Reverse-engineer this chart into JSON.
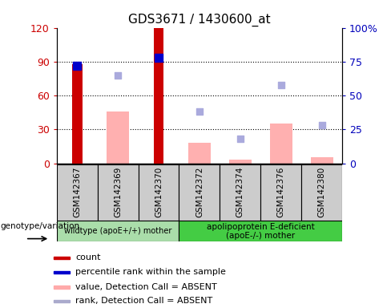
{
  "title": "GDS3671 / 1430600_at",
  "samples": [
    "GSM142367",
    "GSM142369",
    "GSM142370",
    "GSM142372",
    "GSM142374",
    "GSM142376",
    "GSM142380"
  ],
  "x_positions": [
    0,
    1,
    2,
    3,
    4,
    5,
    6
  ],
  "red_bars": [
    88,
    0,
    120,
    0,
    0,
    0,
    0
  ],
  "pink_bars": [
    0,
    46,
    0,
    18,
    3,
    35,
    5
  ],
  "blue_squares": [
    72,
    0,
    78,
    0,
    0,
    0,
    0
  ],
  "lavender_squares": [
    0,
    65,
    0,
    38,
    18,
    58,
    28
  ],
  "ylim_left": [
    0,
    120
  ],
  "ylim_right": [
    0,
    100
  ],
  "ytick_labels_left": [
    "0",
    "30",
    "60",
    "90",
    "120"
  ],
  "ytick_labels_right": [
    "0",
    "25",
    "50",
    "75",
    "100%"
  ],
  "group1_label": "wildtype (apoE+/+) mother",
  "group2_label": "apolipoprotein E-deficient\n(apoE-/-) mother",
  "legend_items": [
    "count",
    "percentile rank within the sample",
    "value, Detection Call = ABSENT",
    "rank, Detection Call = ABSENT"
  ],
  "legend_colors": [
    "#cc0000",
    "#0000cc",
    "#ffaaaa",
    "#aaaacc"
  ],
  "red_bar_color": "#cc0000",
  "pink_bar_color": "#ffb0b0",
  "blue_sq_color": "#0000cc",
  "lavender_sq_color": "#aaaadd",
  "group1_bg": "#aaddaa",
  "group2_bg": "#44cc44",
  "tick_label_color_left": "#cc0000",
  "tick_label_color_right": "#0000bb",
  "sample_box_color": "#cccccc"
}
